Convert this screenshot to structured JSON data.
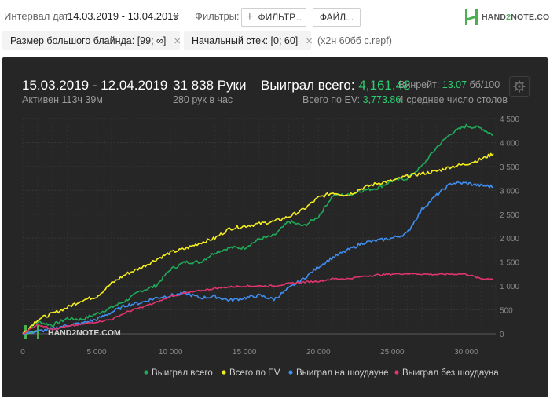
{
  "toolbar": {
    "date_label": "Интервал дат:",
    "date_value": "14.03.2019 - 13.04.2019",
    "filters_label": "Фильтры:",
    "filter_button": "ФИЛЬТР...",
    "file_button": "ФАЙЛ...",
    "logo_text_a": "HAND",
    "logo_text_b": "2",
    "logo_text_c": "NOTE.COM"
  },
  "chips": [
    {
      "label": "Размер большого блайнда: [99; ∞]"
    },
    {
      "label": "Начальный стек: [0; 60]"
    }
  ],
  "source_note": "(х2н 60бб с.repf)",
  "summary": {
    "period": "15.03.2019 - 12.04.2019",
    "active": "Активен 113ч 39м",
    "hands": "31 838 Руки",
    "hands_rate": "280 рук в час",
    "won_label": "Выиграл всего:",
    "won_value": "4,161.48",
    "ev_label": "Всего по EV:",
    "ev_value": "3,773.86",
    "winrate_label": "Винрейт:",
    "winrate_value": "13.07",
    "winrate_unit": "бб/100",
    "tables": "4 среднее число столов"
  },
  "watermark": "HAND2NOTE.COM",
  "colors": {
    "won": "#1faa5a",
    "ev": "#f5ee1e",
    "showdown": "#3f8ef0",
    "non_showdown": "#e0356e",
    "panel": "#262626",
    "grid": "#3a3a3a"
  },
  "chart_data": {
    "type": "line",
    "xlim": [
      0,
      32000
    ],
    "ylim": [
      0,
      4500
    ],
    "x_ticks": [
      "0",
      "5 000",
      "10 000",
      "15 000",
      "20 000",
      "25 000",
      "30 000"
    ],
    "x_tick_values": [
      0,
      5000,
      10000,
      15000,
      20000,
      25000,
      30000
    ],
    "y_ticks": [
      "0",
      "500",
      "1 000",
      "1 500",
      "2 000",
      "2 500",
      "3 000",
      "3 500",
      "4 000",
      "4 500"
    ],
    "y_tick_values": [
      0,
      500,
      1000,
      1500,
      2000,
      2500,
      3000,
      3500,
      4000,
      4500
    ],
    "grid": true,
    "legend_position": "bottom",
    "series": [
      {
        "name": "Выиграл всего",
        "color": "#1faa5a",
        "x": [
          0,
          1000,
          2000,
          3000,
          4000,
          5000,
          6000,
          7000,
          8000,
          9000,
          10000,
          11000,
          12000,
          13000,
          14000,
          15000,
          16000,
          17000,
          18000,
          19000,
          20000,
          21000,
          22000,
          23000,
          24000,
          25000,
          26000,
          27000,
          28000,
          29000,
          30000,
          31000,
          31838
        ],
        "y": [
          0,
          250,
          180,
          320,
          300,
          420,
          550,
          700,
          900,
          1000,
          1350,
          1500,
          1500,
          1700,
          1800,
          1800,
          1980,
          2050,
          2350,
          2250,
          2450,
          2900,
          2900,
          3000,
          3050,
          3200,
          3250,
          3500,
          3900,
          4200,
          4350,
          4300,
          4160
        ]
      },
      {
        "name": "Всего по EV",
        "color": "#f5ee1e",
        "x": [
          0,
          1000,
          2000,
          3000,
          4000,
          5000,
          6000,
          7000,
          8000,
          9000,
          10000,
          11000,
          12000,
          13000,
          14000,
          15000,
          16000,
          17000,
          18000,
          19000,
          20000,
          21000,
          22000,
          23000,
          24000,
          25000,
          26000,
          27000,
          28000,
          29000,
          30000,
          31000,
          31838
        ],
        "y": [
          0,
          300,
          420,
          550,
          700,
          780,
          1050,
          1250,
          1380,
          1550,
          1700,
          1780,
          1900,
          2000,
          2200,
          2250,
          2300,
          2350,
          2450,
          2600,
          2850,
          2950,
          2900,
          3050,
          3150,
          3200,
          3300,
          3350,
          3400,
          3500,
          3550,
          3650,
          3770
        ]
      },
      {
        "name": "Выиграл на шоудауне",
        "color": "#3f8ef0",
        "x": [
          0,
          1000,
          2000,
          3000,
          4000,
          5000,
          6000,
          7000,
          8000,
          9000,
          10000,
          11000,
          12000,
          13000,
          14000,
          15000,
          16000,
          17000,
          18000,
          19000,
          20000,
          21000,
          22000,
          23000,
          24000,
          25000,
          26000,
          27000,
          28000,
          29000,
          30000,
          31000,
          31838
        ],
        "y": [
          0,
          50,
          100,
          180,
          220,
          300,
          450,
          600,
          650,
          750,
          800,
          850,
          750,
          780,
          700,
          750,
          800,
          720,
          950,
          1150,
          1400,
          1600,
          1750,
          1900,
          1950,
          2000,
          2100,
          2600,
          2900,
          3150,
          3150,
          3100,
          3080
        ]
      },
      {
        "name": "Выиграл без шоудауна",
        "color": "#e0356e",
        "x": [
          0,
          1000,
          2000,
          3000,
          4000,
          5000,
          6000,
          7000,
          8000,
          9000,
          10000,
          11000,
          12000,
          13000,
          14000,
          15000,
          16000,
          17000,
          18000,
          19000,
          20000,
          21000,
          22000,
          23000,
          24000,
          25000,
          26000,
          27000,
          28000,
          29000,
          30000,
          31000,
          31838
        ],
        "y": [
          0,
          200,
          100,
          150,
          200,
          250,
          300,
          450,
          550,
          650,
          780,
          850,
          900,
          950,
          980,
          1000,
          1000,
          1000,
          1050,
          1080,
          1100,
          1150,
          1150,
          1200,
          1230,
          1250,
          1260,
          1250,
          1240,
          1250,
          1250,
          1150,
          1150
        ]
      }
    ]
  }
}
